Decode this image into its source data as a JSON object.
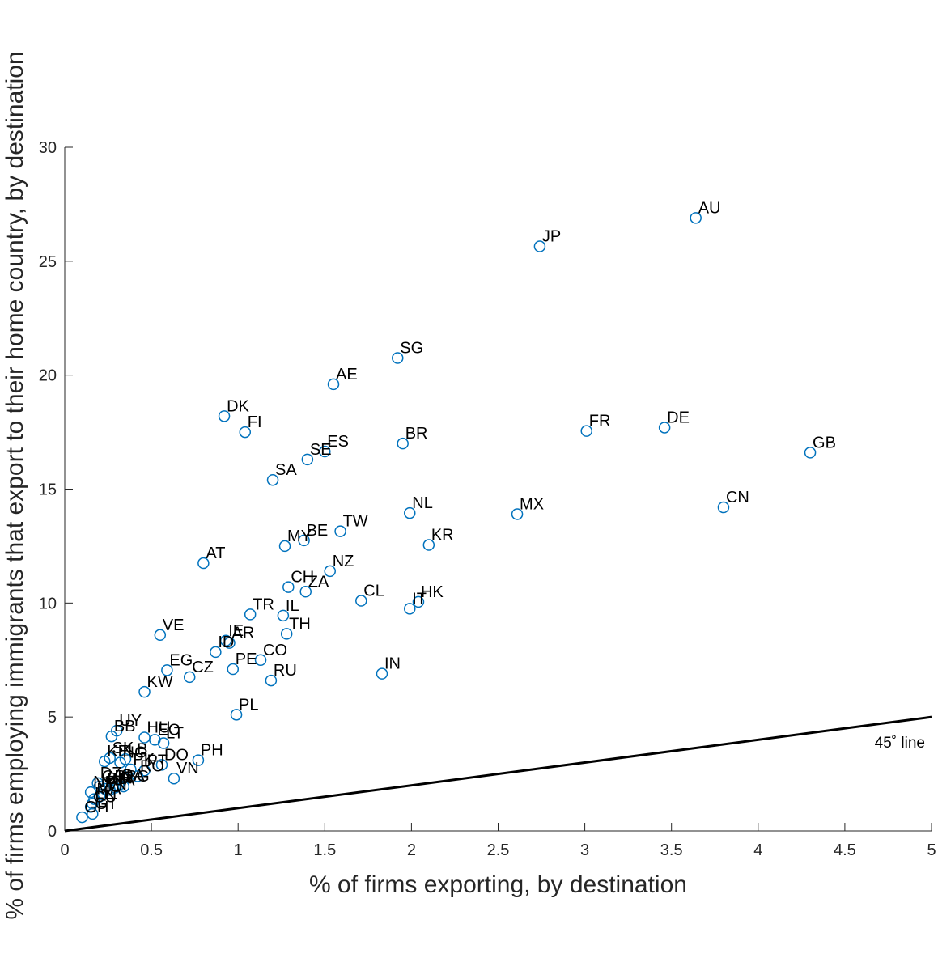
{
  "chart_data": {
    "type": "scatter",
    "xlabel": "% of firms exporting, by destination",
    "ylabel": "% of firms employing immigrants that export to their home country, by destination",
    "xlim": [
      0,
      5
    ],
    "ylim": [
      0,
      30
    ],
    "xticks": [
      0,
      0.5,
      1,
      1.5,
      2,
      2.5,
      3,
      3.5,
      4,
      4.5,
      5
    ],
    "xtick_labels": [
      "0",
      "0.5",
      "1",
      "1.5",
      "2",
      "2.5",
      "3",
      "3.5",
      "4",
      "4.5",
      "5"
    ],
    "yticks": [
      0,
      5,
      10,
      15,
      20,
      25,
      30
    ],
    "ytick_labels": [
      "0",
      "5",
      "10",
      "15",
      "20",
      "25",
      "30"
    ],
    "grid": false,
    "marker": "open-circle",
    "marker_color": "#0072BD",
    "reference_line": {
      "label": "45˚ line",
      "slope": 1,
      "color": "#000000"
    },
    "points": [
      {
        "label": "AU",
        "x": 3.64,
        "y": 26.9
      },
      {
        "label": "JP",
        "x": 2.74,
        "y": 25.65
      },
      {
        "label": "SG",
        "x": 1.92,
        "y": 20.75
      },
      {
        "label": "AE",
        "x": 1.55,
        "y": 19.6
      },
      {
        "label": "DK",
        "x": 0.92,
        "y": 18.2
      },
      {
        "label": "FI",
        "x": 1.04,
        "y": 17.5
      },
      {
        "label": "FR",
        "x": 3.01,
        "y": 17.55
      },
      {
        "label": "DE",
        "x": 3.46,
        "y": 17.7
      },
      {
        "label": "GB",
        "x": 4.3,
        "y": 16.6
      },
      {
        "label": "BR",
        "x": 1.95,
        "y": 17.0
      },
      {
        "label": "ES",
        "x": 1.5,
        "y": 16.65
      },
      {
        "label": "SE",
        "x": 1.4,
        "y": 16.3
      },
      {
        "label": "SA",
        "x": 1.2,
        "y": 15.4
      },
      {
        "label": "CN",
        "x": 3.8,
        "y": 14.2
      },
      {
        "label": "NL",
        "x": 1.99,
        "y": 13.95
      },
      {
        "label": "MX",
        "x": 2.61,
        "y": 13.9
      },
      {
        "label": "TW",
        "x": 1.59,
        "y": 13.15
      },
      {
        "label": "BE",
        "x": 1.38,
        "y": 12.75
      },
      {
        "label": "MY",
        "x": 1.27,
        "y": 12.5
      },
      {
        "label": "KR",
        "x": 2.1,
        "y": 12.55
      },
      {
        "label": "AT",
        "x": 0.8,
        "y": 11.75
      },
      {
        "label": "NZ",
        "x": 1.53,
        "y": 11.4
      },
      {
        "label": "CH",
        "x": 1.29,
        "y": 10.7
      },
      {
        "label": "ZA",
        "x": 1.39,
        "y": 10.5
      },
      {
        "label": "CL",
        "x": 1.71,
        "y": 10.1
      },
      {
        "label": "HK",
        "x": 2.04,
        "y": 10.05
      },
      {
        "label": "IT",
        "x": 1.99,
        "y": 9.75
      },
      {
        "label": "TR",
        "x": 1.07,
        "y": 9.5
      },
      {
        "label": "IL",
        "x": 1.26,
        "y": 9.45
      },
      {
        "label": "TH",
        "x": 1.28,
        "y": 8.65
      },
      {
        "label": "VE",
        "x": 0.55,
        "y": 8.6
      },
      {
        "label": "IE",
        "x": 0.93,
        "y": 8.35
      },
      {
        "label": "AR",
        "x": 0.95,
        "y": 8.25
      },
      {
        "label": "ID",
        "x": 0.87,
        "y": 7.85
      },
      {
        "label": "CO",
        "x": 1.13,
        "y": 7.5
      },
      {
        "label": "PE",
        "x": 0.97,
        "y": 7.1
      },
      {
        "label": "EG",
        "x": 0.59,
        "y": 7.05
      },
      {
        "label": "CZ",
        "x": 0.72,
        "y": 6.75
      },
      {
        "label": "RU",
        "x": 1.19,
        "y": 6.6
      },
      {
        "label": "IN",
        "x": 1.83,
        "y": 6.9
      },
      {
        "label": "KW",
        "x": 0.46,
        "y": 6.1
      },
      {
        "label": "PL",
        "x": 0.99,
        "y": 5.1
      },
      {
        "label": "UY",
        "x": 0.3,
        "y": 4.4
      },
      {
        "label": "BB",
        "x": 0.27,
        "y": 4.15
      },
      {
        "label": "HU",
        "x": 0.46,
        "y": 4.1
      },
      {
        "label": "LT",
        "x": 0.57,
        "y": 3.85
      },
      {
        "label": "EC",
        "x": 0.52,
        "y": 4.0
      },
      {
        "label": "PH",
        "x": 0.77,
        "y": 3.1
      },
      {
        "label": "SK",
        "x": 0.26,
        "y": 3.2
      },
      {
        "label": "LB",
        "x": 0.35,
        "y": 3.15
      },
      {
        "label": "KE",
        "x": 0.23,
        "y": 3.05
      },
      {
        "label": "NG",
        "x": 0.32,
        "y": 3.0
      },
      {
        "label": "DO",
        "x": 0.56,
        "y": 2.9
      },
      {
        "label": "PK",
        "x": 0.38,
        "y": 2.7
      },
      {
        "label": "PT",
        "x": 0.46,
        "y": 2.65
      },
      {
        "label": "RO",
        "x": 0.42,
        "y": 2.4
      },
      {
        "label": "VN",
        "x": 0.63,
        "y": 2.3
      },
      {
        "label": "DZ",
        "x": 0.19,
        "y": 2.1
      },
      {
        "label": "GR",
        "x": 0.2,
        "y": 1.95
      },
      {
        "label": "BD",
        "x": 0.23,
        "y": 1.85
      },
      {
        "label": "UA",
        "x": 0.26,
        "y": 1.8
      },
      {
        "label": "IR",
        "x": 0.29,
        "y": 1.9
      },
      {
        "label": "QA",
        "x": 0.31,
        "y": 2.0
      },
      {
        "label": "BG",
        "x": 0.34,
        "y": 1.95
      },
      {
        "label": "NP",
        "x": 0.15,
        "y": 1.7
      },
      {
        "label": "MA",
        "x": 0.17,
        "y": 1.4
      },
      {
        "label": "JO",
        "x": 0.2,
        "y": 1.5
      },
      {
        "label": "TN",
        "x": 0.22,
        "y": 1.6
      },
      {
        "label": "LK",
        "x": 0.16,
        "y": 1.2
      },
      {
        "label": "CU",
        "x": 0.15,
        "y": 1.05
      },
      {
        "label": "GT",
        "x": 0.16,
        "y": 0.75
      },
      {
        "label": "GH",
        "x": 0.1,
        "y": 0.6
      }
    ]
  }
}
